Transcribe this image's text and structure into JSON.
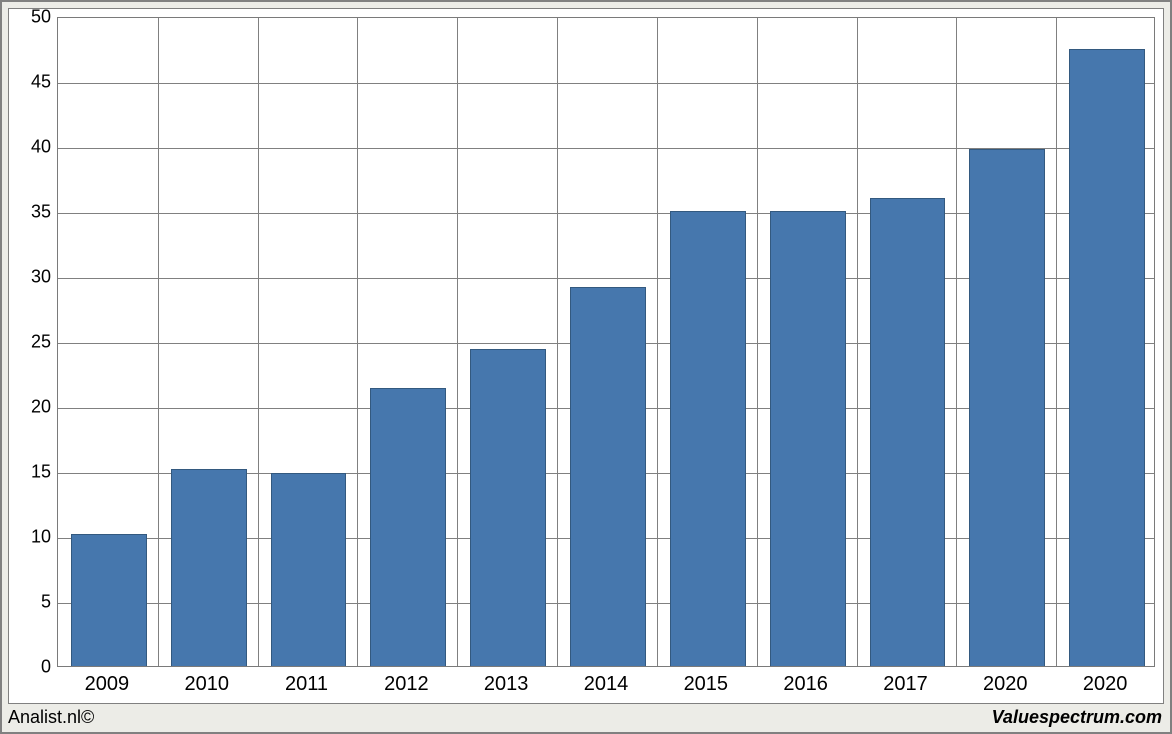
{
  "chart": {
    "type": "bar",
    "categories": [
      "2009",
      "2010",
      "2011",
      "2012",
      "2013",
      "2014",
      "2015",
      "2016",
      "2017",
      "2020",
      "2020"
    ],
    "values": [
      10.1,
      15.1,
      14.8,
      21.3,
      24.3,
      29.1,
      34.9,
      34.9,
      35.9,
      39.7,
      47.4
    ],
    "bar_color": "#4677ad",
    "bar_border_color": "#33597f",
    "bar_width_ratio": 0.74,
    "background_color": "#ffffff",
    "grid_color": "#808080",
    "ylim": [
      0,
      50
    ],
    "ytick_step": 5,
    "tick_fontsize": 18,
    "xlabel_fontsize": 20
  },
  "footer": {
    "left": "Analist.nl©",
    "right": "Valuespectrum.com"
  },
  "frame": {
    "outer_border_color": "#808080",
    "outer_background": "#ecece7"
  }
}
